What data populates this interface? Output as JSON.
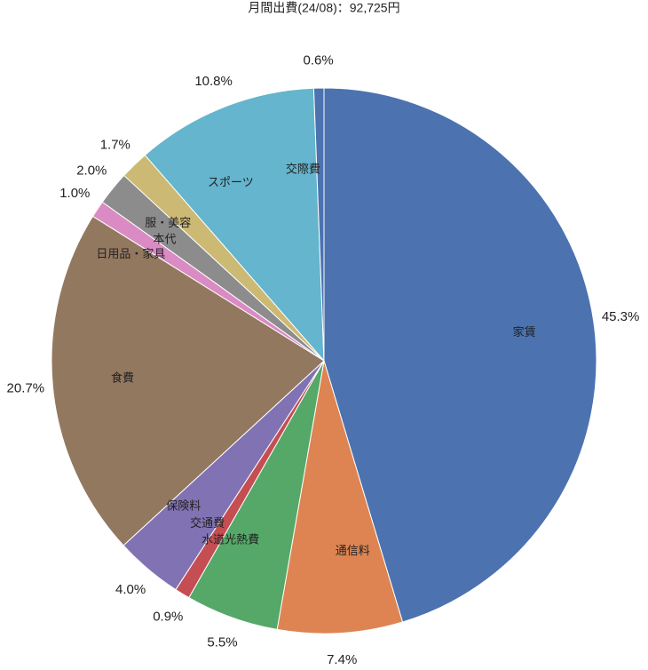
{
  "chart_data": {
    "type": "pie",
    "title": "月間出費(24/08)：92,725円",
    "labels": [
      "家賃",
      "通信料",
      "水道光熱費",
      "交通費",
      "保険料",
      "食費",
      "日用品・家具",
      "本代",
      "服・美容",
      "スポーツ",
      "交際費"
    ],
    "values": [
      45.3,
      7.4,
      5.5,
      0.9,
      4.0,
      20.7,
      1.0,
      2.0,
      1.7,
      10.8,
      0.6
    ],
    "value_labels": [
      "45.3%",
      "7.4%",
      "5.5%",
      "0.9%",
      "4.0%",
      "20.7%",
      "1.0%",
      "2.0%",
      "1.7%",
      "10.8%",
      "0.6%"
    ],
    "colors": [
      "#4c72b0",
      "#dd8452",
      "#55a868",
      "#c44e52",
      "#8172b3",
      "#937860",
      "#da8bc3",
      "#8c8c8c",
      "#ccb974",
      "#64b5cd",
      "#4c72b0"
    ]
  }
}
